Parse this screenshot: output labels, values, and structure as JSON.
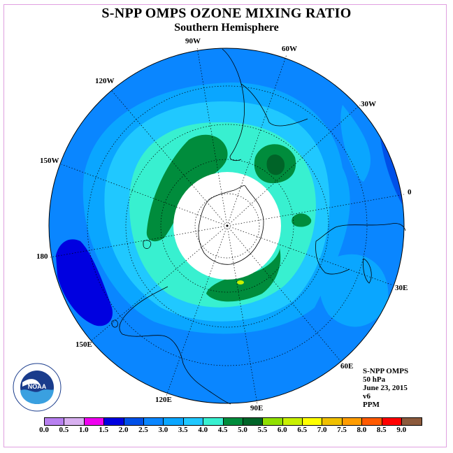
{
  "header": {
    "title": "S-NPP OMPS OZONE MIXING RATIO",
    "subtitle": "Southern Hemisphere"
  },
  "map": {
    "projection": "polar stereographic, south pole centered",
    "longitude_labels": [
      "90W",
      "60W",
      "30W",
      "0",
      "30E",
      "60E",
      "90E",
      "120E",
      "150E",
      "180",
      "150W",
      "120W"
    ],
    "polar_gap_color": "#ffffff"
  },
  "info": {
    "line1": "S-NPP OMPS",
    "line2": "50 hPa",
    "line3": "June 23, 2015",
    "line4": "v6",
    "line5": "PPM"
  },
  "logo": {
    "text": "NOAA",
    "ring_text": "NATIONAL OCEANIC AND ATMOSPHERIC ADMINISTRATION U.S. DEPARTMENT OF COMMERCE"
  },
  "legend": {
    "colors": [
      "#b880f0",
      "#d8b0f0",
      "#f000f0",
      "#0000e0",
      "#0050e8",
      "#0a86ff",
      "#0aa6ff",
      "#20c8ff",
      "#38f0d0",
      "#008c3c",
      "#006428",
      "#90e000",
      "#c8f000",
      "#ffff00",
      "#f0c000",
      "#ff9c00",
      "#ff5a00",
      "#ff0000",
      "#8c5a3c"
    ],
    "ticks": [
      "0.0",
      "0.5",
      "1.0",
      "1.5",
      "2.0",
      "2.5",
      "3.0",
      "3.5",
      "4.0",
      "4.5",
      "5.0",
      "5.5",
      "6.0",
      "6.5",
      "7.0",
      "7.5",
      "8.0",
      "8.5",
      "9.0"
    ]
  }
}
